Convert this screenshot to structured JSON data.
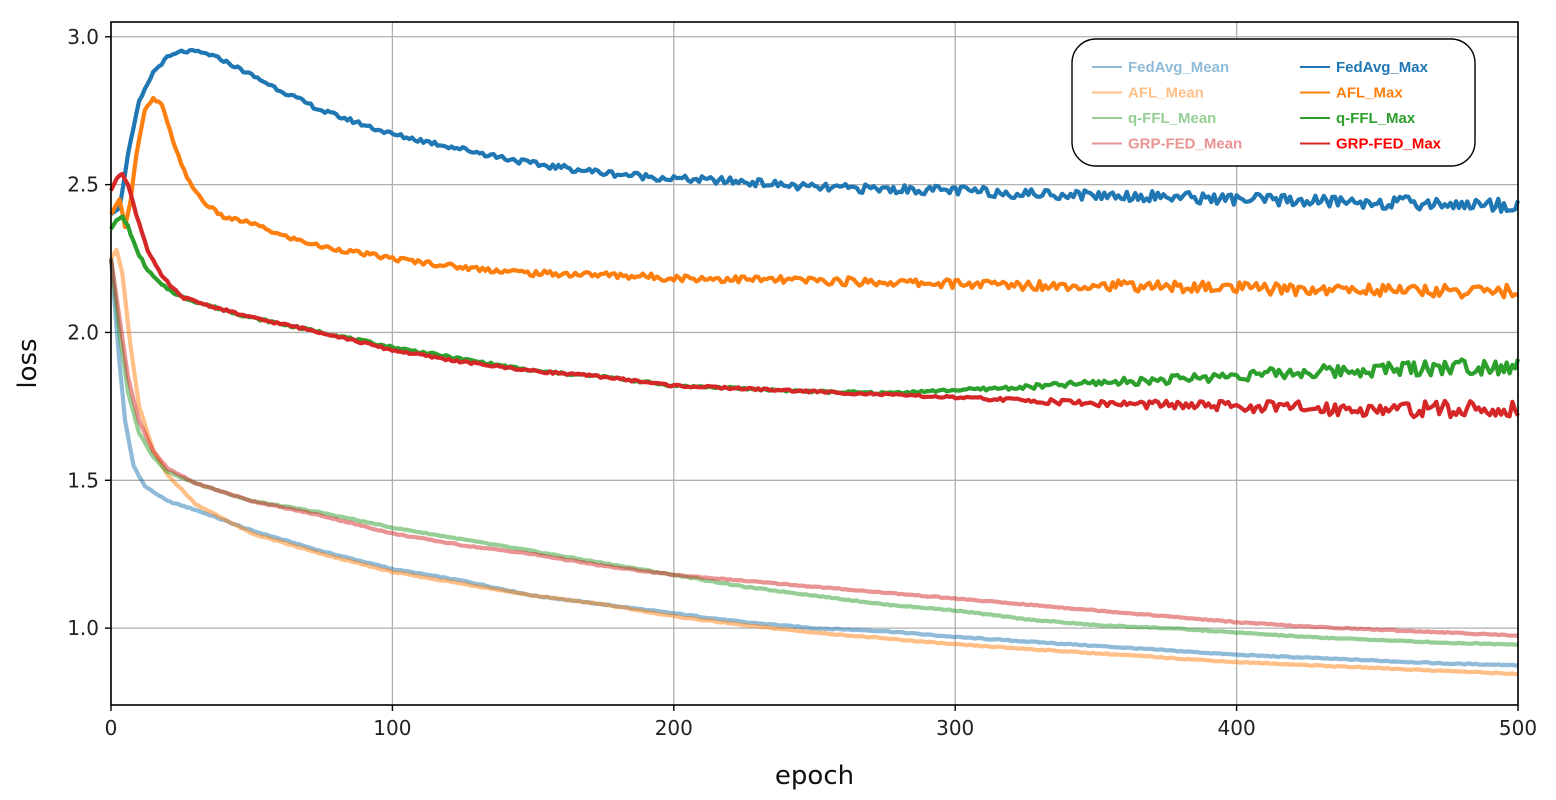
{
  "chart_data": {
    "type": "line",
    "xlabel": "epoch",
    "ylabel": "loss",
    "xlim": [
      0,
      500
    ],
    "ylim": [
      0.74,
      3.05
    ],
    "xticks": [
      0,
      100,
      200,
      300,
      400,
      500
    ],
    "yticks": [
      1.0,
      1.5,
      2.0,
      2.5,
      3.0
    ],
    "grid": true,
    "legend_position": "top-right",
    "legend_columns": 2,
    "series": [
      {
        "name": "FedAvg_Mean",
        "color": "#1f77b4",
        "alpha": 0.5,
        "points": [
          [
            0,
            2.25
          ],
          [
            3,
            1.9
          ],
          [
            5,
            1.7
          ],
          [
            8,
            1.55
          ],
          [
            12,
            1.48
          ],
          [
            20,
            1.43
          ],
          [
            30,
            1.4
          ],
          [
            50,
            1.33
          ],
          [
            75,
            1.26
          ],
          [
            100,
            1.2
          ],
          [
            125,
            1.16
          ],
          [
            150,
            1.11
          ],
          [
            175,
            1.08
          ],
          [
            200,
            1.05
          ],
          [
            225,
            1.02
          ],
          [
            250,
            1.0
          ],
          [
            275,
            0.99
          ],
          [
            300,
            0.97
          ],
          [
            325,
            0.955
          ],
          [
            350,
            0.94
          ],
          [
            375,
            0.925
          ],
          [
            400,
            0.91
          ],
          [
            425,
            0.9
          ],
          [
            450,
            0.89
          ],
          [
            475,
            0.88
          ],
          [
            500,
            0.875
          ]
        ]
      },
      {
        "name": "AFL_Mean",
        "color": "#ff7f0e",
        "alpha": 0.5,
        "points": [
          [
            0,
            2.25
          ],
          [
            2,
            2.28
          ],
          [
            4,
            2.2
          ],
          [
            7,
            1.95
          ],
          [
            10,
            1.75
          ],
          [
            15,
            1.6
          ],
          [
            20,
            1.52
          ],
          [
            30,
            1.42
          ],
          [
            50,
            1.32
          ],
          [
            75,
            1.25
          ],
          [
            100,
            1.19
          ],
          [
            125,
            1.15
          ],
          [
            150,
            1.11
          ],
          [
            175,
            1.08
          ],
          [
            200,
            1.04
          ],
          [
            225,
            1.01
          ],
          [
            250,
            0.985
          ],
          [
            275,
            0.965
          ],
          [
            300,
            0.945
          ],
          [
            325,
            0.93
          ],
          [
            350,
            0.915
          ],
          [
            375,
            0.9
          ],
          [
            400,
            0.885
          ],
          [
            425,
            0.875
          ],
          [
            450,
            0.865
          ],
          [
            475,
            0.855
          ],
          [
            500,
            0.845
          ]
        ]
      },
      {
        "name": "q-FFL_Mean",
        "color": "#2ca02c",
        "alpha": 0.5,
        "points": [
          [
            0,
            2.25
          ],
          [
            3,
            2.0
          ],
          [
            6,
            1.8
          ],
          [
            10,
            1.66
          ],
          [
            15,
            1.58
          ],
          [
            20,
            1.53
          ],
          [
            30,
            1.49
          ],
          [
            50,
            1.43
          ],
          [
            75,
            1.39
          ],
          [
            100,
            1.34
          ],
          [
            125,
            1.3
          ],
          [
            150,
            1.26
          ],
          [
            175,
            1.22
          ],
          [
            200,
            1.18
          ],
          [
            225,
            1.14
          ],
          [
            250,
            1.11
          ],
          [
            275,
            1.08
          ],
          [
            300,
            1.06
          ],
          [
            325,
            1.03
          ],
          [
            350,
            1.01
          ],
          [
            375,
            1.0
          ],
          [
            400,
            0.985
          ],
          [
            425,
            0.97
          ],
          [
            450,
            0.96
          ],
          [
            475,
            0.95
          ],
          [
            500,
            0.945
          ]
        ]
      },
      {
        "name": "GRP-FED_Mean",
        "color": "#d62728",
        "alpha": 0.5,
        "points": [
          [
            0,
            2.25
          ],
          [
            3,
            2.05
          ],
          [
            6,
            1.85
          ],
          [
            10,
            1.7
          ],
          [
            15,
            1.6
          ],
          [
            20,
            1.54
          ],
          [
            30,
            1.49
          ],
          [
            50,
            1.43
          ],
          [
            75,
            1.38
          ],
          [
            100,
            1.32
          ],
          [
            125,
            1.28
          ],
          [
            150,
            1.25
          ],
          [
            175,
            1.21
          ],
          [
            200,
            1.18
          ],
          [
            225,
            1.16
          ],
          [
            250,
            1.14
          ],
          [
            275,
            1.12
          ],
          [
            300,
            1.1
          ],
          [
            325,
            1.08
          ],
          [
            350,
            1.06
          ],
          [
            375,
            1.04
          ],
          [
            400,
            1.02
          ],
          [
            425,
            1.005
          ],
          [
            450,
            0.995
          ],
          [
            475,
            0.985
          ],
          [
            500,
            0.975
          ]
        ]
      },
      {
        "name": "FedAvg_Max",
        "color": "#1f77b4",
        "alpha": 1,
        "points": [
          [
            0,
            2.4
          ],
          [
            3,
            2.42
          ],
          [
            6,
            2.6
          ],
          [
            10,
            2.78
          ],
          [
            15,
            2.88
          ],
          [
            20,
            2.93
          ],
          [
            25,
            2.95
          ],
          [
            30,
            2.95
          ],
          [
            35,
            2.94
          ],
          [
            40,
            2.92
          ],
          [
            50,
            2.87
          ],
          [
            60,
            2.82
          ],
          [
            75,
            2.75
          ],
          [
            100,
            2.67
          ],
          [
            125,
            2.62
          ],
          [
            150,
            2.57
          ],
          [
            175,
            2.54
          ],
          [
            200,
            2.52
          ],
          [
            225,
            2.51
          ],
          [
            250,
            2.49
          ],
          [
            275,
            2.485
          ],
          [
            300,
            2.48
          ],
          [
            325,
            2.47
          ],
          [
            350,
            2.465
          ],
          [
            375,
            2.46
          ],
          [
            400,
            2.45
          ],
          [
            425,
            2.445
          ],
          [
            450,
            2.44
          ],
          [
            475,
            2.435
          ],
          [
            500,
            2.43
          ]
        ]
      },
      {
        "name": "AFL_Max",
        "color": "#ff7f0e",
        "alpha": 1,
        "points": [
          [
            0,
            2.4
          ],
          [
            3,
            2.45
          ],
          [
            5,
            2.36
          ],
          [
            7,
            2.45
          ],
          [
            9,
            2.6
          ],
          [
            12,
            2.75
          ],
          [
            15,
            2.79
          ],
          [
            18,
            2.77
          ],
          [
            22,
            2.65
          ],
          [
            27,
            2.52
          ],
          [
            33,
            2.44
          ],
          [
            40,
            2.39
          ],
          [
            50,
            2.37
          ],
          [
            60,
            2.33
          ],
          [
            75,
            2.29
          ],
          [
            100,
            2.25
          ],
          [
            125,
            2.22
          ],
          [
            150,
            2.2
          ],
          [
            175,
            2.195
          ],
          [
            200,
            2.185
          ],
          [
            225,
            2.18
          ],
          [
            250,
            2.175
          ],
          [
            275,
            2.17
          ],
          [
            300,
            2.165
          ],
          [
            325,
            2.16
          ],
          [
            350,
            2.16
          ],
          [
            375,
            2.155
          ],
          [
            400,
            2.15
          ],
          [
            425,
            2.145
          ],
          [
            450,
            2.145
          ],
          [
            475,
            2.14
          ],
          [
            500,
            2.14
          ]
        ]
      },
      {
        "name": "q-FFL_Max",
        "color": "#2ca02c",
        "alpha": 1,
        "points": [
          [
            0,
            2.35
          ],
          [
            2,
            2.38
          ],
          [
            4,
            2.39
          ],
          [
            6,
            2.36
          ],
          [
            9,
            2.28
          ],
          [
            13,
            2.21
          ],
          [
            18,
            2.16
          ],
          [
            25,
            2.12
          ],
          [
            35,
            2.09
          ],
          [
            50,
            2.05
          ],
          [
            75,
            2.0
          ],
          [
            100,
            1.95
          ],
          [
            125,
            1.91
          ],
          [
            150,
            1.87
          ],
          [
            175,
            1.85
          ],
          [
            200,
            1.82
          ],
          [
            225,
            1.81
          ],
          [
            250,
            1.8
          ],
          [
            275,
            1.795
          ],
          [
            300,
            1.805
          ],
          [
            325,
            1.815
          ],
          [
            350,
            1.83
          ],
          [
            375,
            1.84
          ],
          [
            400,
            1.855
          ],
          [
            425,
            1.865
          ],
          [
            450,
            1.875
          ],
          [
            475,
            1.885
          ],
          [
            500,
            1.89
          ]
        ]
      },
      {
        "name": "GRP-FED_Max",
        "color": "#d62728",
        "alpha": 1,
        "points": [
          [
            0,
            2.48
          ],
          [
            2,
            2.52
          ],
          [
            4,
            2.54
          ],
          [
            6,
            2.5
          ],
          [
            9,
            2.4
          ],
          [
            13,
            2.28
          ],
          [
            18,
            2.19
          ],
          [
            25,
            2.12
          ],
          [
            35,
            2.09
          ],
          [
            50,
            2.05
          ],
          [
            75,
            2.0
          ],
          [
            100,
            1.94
          ],
          [
            125,
            1.9
          ],
          [
            150,
            1.87
          ],
          [
            175,
            1.85
          ],
          [
            200,
            1.82
          ],
          [
            225,
            1.81
          ],
          [
            250,
            1.8
          ],
          [
            275,
            1.79
          ],
          [
            300,
            1.78
          ],
          [
            325,
            1.77
          ],
          [
            350,
            1.76
          ],
          [
            375,
            1.755
          ],
          [
            400,
            1.75
          ],
          [
            425,
            1.745
          ],
          [
            450,
            1.74
          ],
          [
            475,
            1.74
          ],
          [
            500,
            1.74
          ]
        ]
      }
    ]
  }
}
